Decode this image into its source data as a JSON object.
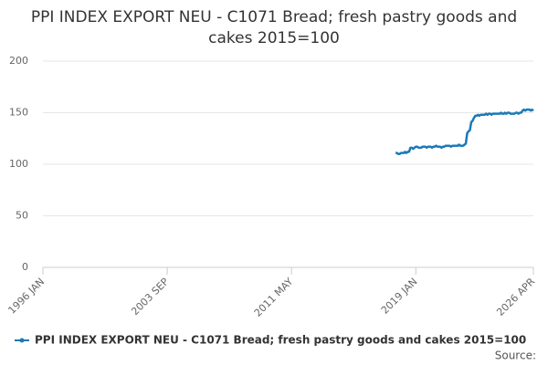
{
  "chart_data": {
    "type": "line",
    "title": "PPI INDEX EXPORT NEU - C1071 Bread; fresh pastry goods and cakes 2015=100",
    "source": "Source:",
    "series": [
      {
        "name": "PPI INDEX EXPORT NEU - C1071 Bread; fresh pastry goods and cakes 2015=100",
        "color": "#1a7ab8",
        "x": [
          "2017-10",
          "2017-11",
          "2017-12",
          "2018-01",
          "2018-02",
          "2018-03",
          "2018-04",
          "2018-05",
          "2018-06",
          "2018-07",
          "2018-08",
          "2018-09",
          "2018-10",
          "2018-11",
          "2018-12",
          "2019-01",
          "2019-02",
          "2019-03",
          "2019-04",
          "2019-05",
          "2019-06",
          "2019-07",
          "2019-08",
          "2019-09",
          "2019-10",
          "2019-11",
          "2019-12",
          "2020-01",
          "2020-02",
          "2020-03",
          "2020-04",
          "2020-05",
          "2020-06",
          "2020-07",
          "2020-08",
          "2020-09",
          "2020-10",
          "2020-11",
          "2020-12",
          "2021-01",
          "2021-02",
          "2021-03",
          "2021-04",
          "2021-05",
          "2021-06",
          "2021-07",
          "2021-08",
          "2021-09",
          "2021-10",
          "2021-11",
          "2021-12",
          "2022-01",
          "2022-02",
          "2022-03",
          "2022-04",
          "2022-05",
          "2022-06",
          "2022-07",
          "2022-08",
          "2022-09",
          "2022-10",
          "2022-11",
          "2022-12",
          "2023-01",
          "2023-02",
          "2023-03",
          "2023-04",
          "2023-05",
          "2023-06",
          "2023-07",
          "2023-08",
          "2023-09",
          "2023-10",
          "2023-11",
          "2023-12",
          "2024-01",
          "2024-02",
          "2024-03",
          "2024-04",
          "2024-05",
          "2024-06",
          "2024-07",
          "2024-08",
          "2024-09",
          "2024-10",
          "2024-11",
          "2024-12",
          "2025-01",
          "2025-02",
          "2025-03",
          "2025-04",
          "2025-05",
          "2025-06",
          "2025-07",
          "2025-08",
          "2025-09",
          "2025-10",
          "2025-11",
          "2025-12",
          "2026-01",
          "2026-02",
          "2026-03",
          "2026-04"
        ],
        "values": [
          111,
          111,
          110,
          110,
          111,
          111,
          111,
          112,
          111,
          112,
          112,
          116,
          116,
          115,
          116,
          117,
          117,
          116,
          116,
          116,
          117,
          117,
          117,
          116,
          117,
          117,
          117,
          116,
          117,
          117,
          118,
          117,
          117,
          117,
          116,
          117,
          117,
          118,
          118,
          118,
          118,
          117,
          118,
          118,
          118,
          118,
          118,
          119,
          118,
          118,
          118,
          119,
          120,
          130,
          132,
          133,
          141,
          142,
          145,
          147,
          147,
          148,
          147,
          148,
          148,
          148,
          148,
          149,
          148,
          149,
          149,
          148,
          149,
          149,
          149,
          149,
          149,
          149,
          150,
          149,
          149,
          150,
          149,
          150,
          150,
          149,
          149,
          149,
          149,
          150,
          150,
          149,
          150,
          150,
          152,
          153,
          152,
          153,
          153,
          153,
          152,
          153,
          152
        ]
      }
    ],
    "xlim": [
      "1996-01",
      "2026-04"
    ],
    "xticks": [
      {
        "value": "1996-01",
        "label": "1996 JAN"
      },
      {
        "value": "2003-09",
        "label": "2003 SEP"
      },
      {
        "value": "2011-05",
        "label": "2011 MAY"
      },
      {
        "value": "2019-01",
        "label": "2019 JAN"
      },
      {
        "value": "2026-04",
        "label": "2026 APR"
      }
    ],
    "ylim": [
      0,
      200
    ],
    "yticks": [
      0,
      50,
      100,
      150,
      200
    ],
    "grid": true
  }
}
